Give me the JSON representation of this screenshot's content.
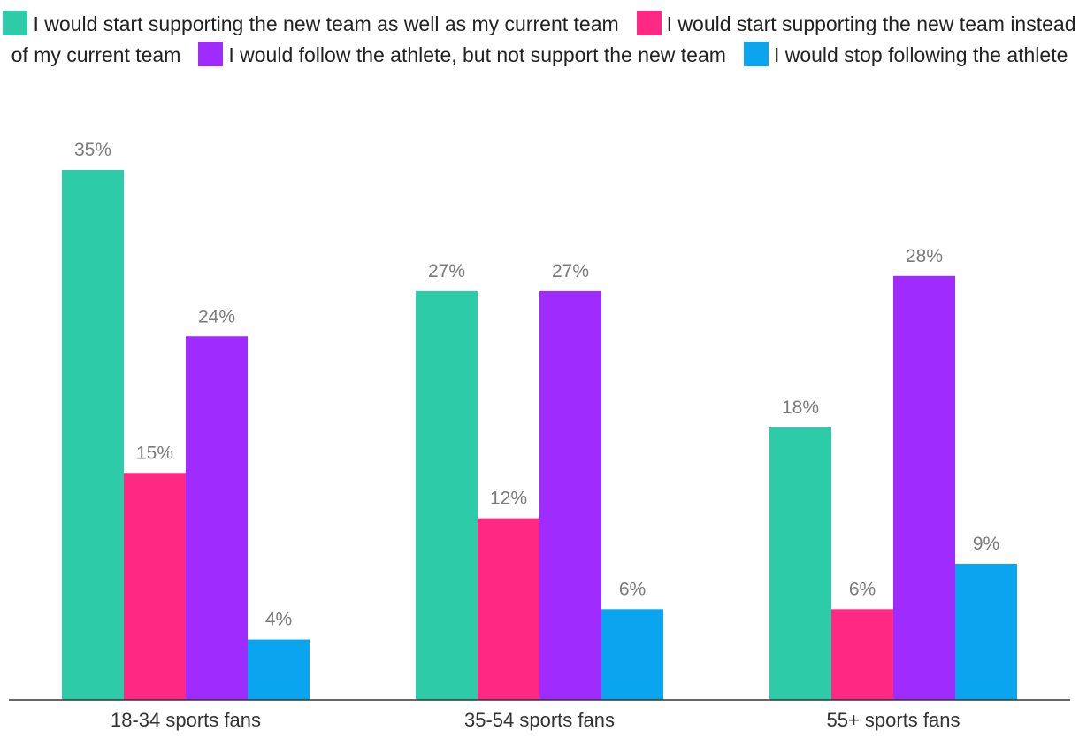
{
  "chart_data": {
    "type": "bar",
    "categories": [
      "18-34 sports fans",
      "35-54 sports fans",
      "55+ sports fans"
    ],
    "series": [
      {
        "name": "I would start supporting the new team as well as my current team",
        "color": "#2ECBA8",
        "values": [
          35,
          27,
          18
        ]
      },
      {
        "name": "I would start supporting the new team instead of my current team",
        "color": "#FF2882",
        "values": [
          15,
          12,
          6
        ]
      },
      {
        "name": "I would follow the athlete, but not support the new team",
        "color": "#A02BFF",
        "values": [
          24,
          27,
          28
        ]
      },
      {
        "name": "I would stop following the athlete",
        "color": "#0AA5EE",
        "values": [
          4,
          6,
          9
        ]
      }
    ],
    "value_suffix": "%",
    "ylim": [
      0,
      35
    ],
    "legend_position": "top",
    "grid": false
  }
}
